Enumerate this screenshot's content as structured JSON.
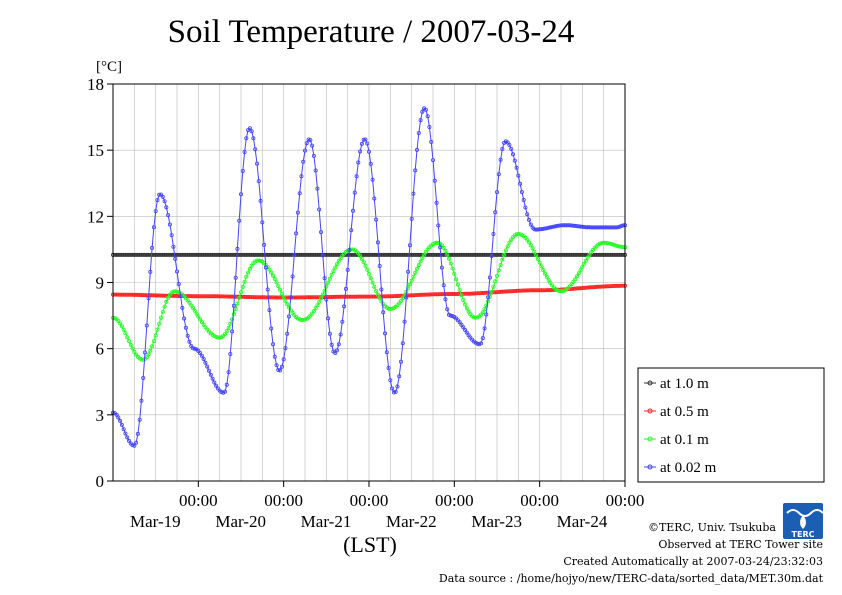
{
  "chart_data": {
    "type": "line",
    "title": "Soil Temperature / 2007-03-24",
    "ylabel": "[°C]",
    "xlabel": "(LST)",
    "ylim": [
      0,
      18
    ],
    "yticks": [
      0,
      3,
      6,
      9,
      12,
      15,
      18
    ],
    "xlim_days": [
      0,
      6
    ],
    "xticks": [
      {
        "day": 1,
        "time": "00:00",
        "date": "Mar-19"
      },
      {
        "day": 2,
        "time": "00:00",
        "date": "Mar-20"
      },
      {
        "day": 3,
        "time": "00:00",
        "date": "Mar-21"
      },
      {
        "day": 4,
        "time": "00:00",
        "date": "Mar-22"
      },
      {
        "day": 5,
        "time": "00:00",
        "date": "Mar-23"
      },
      {
        "day": 6,
        "time": "00:00",
        "date": "Mar-24"
      }
    ],
    "legend_position": "right",
    "grid": true,
    "series": [
      {
        "name": "at 1.0 m",
        "color": "#333333",
        "x": [
          0,
          6
        ],
        "y": [
          10.25,
          10.25
        ]
      },
      {
        "name": "at 0.5 m",
        "color": "#ff2222",
        "x": [
          0,
          1,
          2,
          3,
          4,
          5,
          6
        ],
        "y": [
          8.45,
          8.38,
          8.32,
          8.36,
          8.48,
          8.65,
          8.85
        ]
      },
      {
        "name": "at 0.1 m",
        "color": "#22ff22",
        "x": [
          0.0,
          0.35,
          0.72,
          1.25,
          1.7,
          2.22,
          2.8,
          3.25,
          3.8,
          4.25,
          4.75,
          5.25,
          5.75,
          6.0
        ],
        "y": [
          7.4,
          5.5,
          8.6,
          6.5,
          10.0,
          7.3,
          10.5,
          7.8,
          10.8,
          7.4,
          11.2,
          8.6,
          10.8,
          10.6
        ]
      },
      {
        "name": "at 0.02 m",
        "color": "#4444ff",
        "x": [
          0.0,
          0.25,
          0.55,
          0.95,
          1.3,
          1.6,
          1.95,
          2.3,
          2.6,
          2.95,
          3.3,
          3.65,
          3.95,
          4.3,
          4.6,
          4.95,
          5.3,
          5.6,
          5.9,
          6.0
        ],
        "y": [
          3.1,
          1.6,
          13.0,
          6.0,
          4.0,
          16.0,
          5.0,
          15.5,
          5.8,
          15.5,
          4.0,
          16.9,
          7.5,
          6.2,
          15.4,
          11.4,
          11.6,
          11.5,
          11.5,
          11.6
        ]
      }
    ]
  },
  "credits": {
    "copyright": "©TERC, Univ. Tsukuba",
    "site": "Observed at TERC Tower site",
    "created": "Created Automatically at 2007-03-24/23:32:03",
    "source": "Data source : /home/hojyo/new/TERC-data/sorted_data/MET.30m.dat"
  },
  "logo": {
    "text": "TERC",
    "color": "#1a5fb4"
  }
}
